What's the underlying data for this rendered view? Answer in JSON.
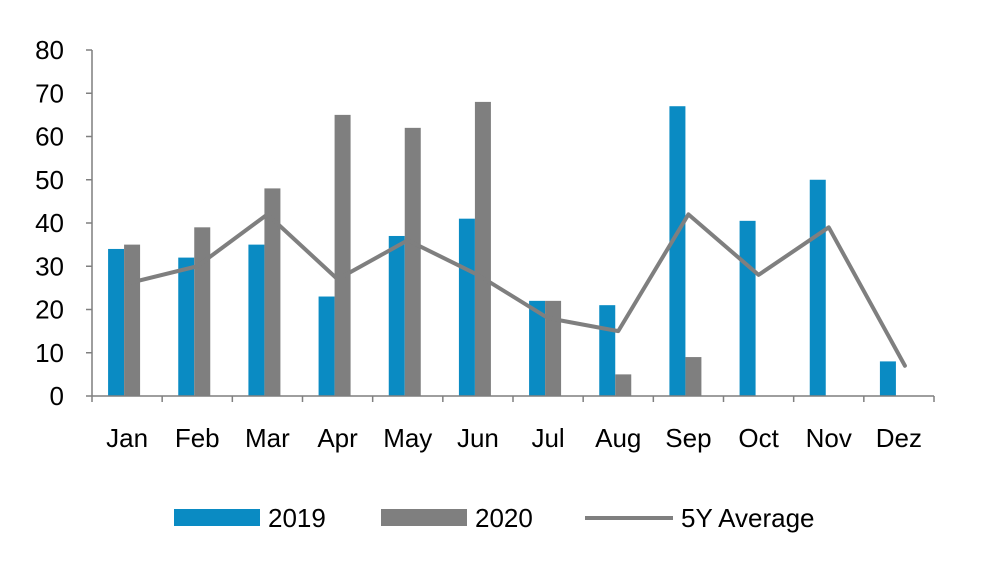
{
  "chart_data": {
    "type": "bar",
    "title": "",
    "xlabel": "",
    "ylabel": "",
    "categories": [
      "Jan",
      "Feb",
      "Mar",
      "Apr",
      "May",
      "Jun",
      "Jul",
      "Aug",
      "Sep",
      "Oct",
      "Nov",
      "Dez"
    ],
    "ylim": [
      0,
      80
    ],
    "yticks": [
      0,
      10,
      20,
      30,
      40,
      50,
      60,
      70,
      80
    ],
    "grid": false,
    "legend": "bottom",
    "series": [
      {
        "name": "2019",
        "kind": "bar",
        "color": "#0a8bc3",
        "values": [
          34,
          32,
          35,
          23,
          37,
          41,
          22,
          21,
          67,
          40.5,
          50,
          8
        ]
      },
      {
        "name": "2020",
        "kind": "bar",
        "color": "#7f7f7f",
        "values": [
          35,
          39,
          48,
          65,
          62,
          68,
          22,
          5,
          9,
          null,
          null,
          null
        ]
      },
      {
        "name": "5Y Average",
        "kind": "line",
        "color": "#7f7f7f",
        "values": [
          26,
          30,
          42,
          27,
          36,
          28,
          18,
          15,
          42,
          28,
          39,
          7
        ]
      }
    ]
  }
}
